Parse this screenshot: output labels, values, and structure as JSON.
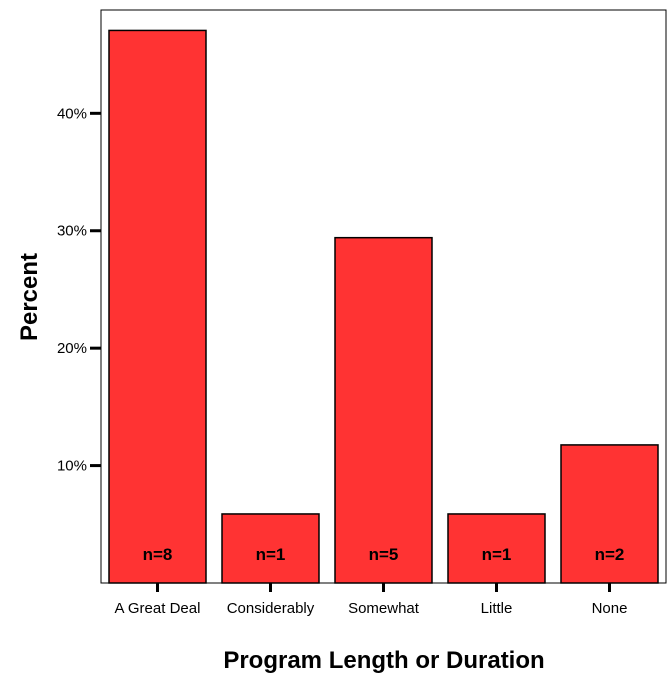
{
  "chart_data": {
    "type": "bar",
    "xlabel": "Program Length or Duration",
    "ylabel": "Percent",
    "categories": [
      "A Great Deal",
      "Considerably",
      "Somewhat",
      "Little",
      "None"
    ],
    "values": [
      47.06,
      5.88,
      29.41,
      5.88,
      11.76
    ],
    "bar_labels": [
      "n=8",
      "n=1",
      "n=5",
      "n=1",
      "n=2"
    ],
    "y_ticks": [
      10,
      20,
      30,
      40
    ],
    "y_tick_labels": [
      "10%",
      "20%",
      "30%",
      "40%"
    ],
    "ylim": [
      0,
      48.8
    ],
    "bar_color": "#ff3333",
    "grid": false,
    "legend": "none"
  }
}
